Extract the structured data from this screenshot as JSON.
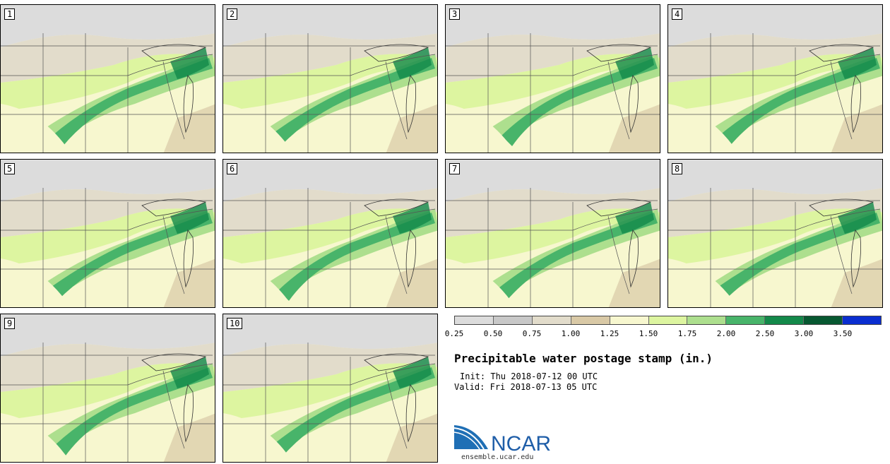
{
  "panels": [
    "1",
    "2",
    "3",
    "4",
    "5",
    "6",
    "7",
    "8",
    "9",
    "10"
  ],
  "colorbar": {
    "ticks": [
      "0.25",
      "0.50",
      "0.75",
      "1.00",
      "1.25",
      "1.50",
      "1.75",
      "2.00",
      "2.50",
      "3.00",
      "3.50"
    ],
    "colors": [
      "#dcdcdc",
      "#c8c8c8",
      "#e2dccb",
      "#d9c9a6",
      "#f7f7cf",
      "#ddf5a0",
      "#addf8e",
      "#48b46a",
      "#13894a",
      "#075831",
      "#0a2ed0"
    ]
  },
  "title": "Precipitable water postage stamp (in.)",
  "init_label": "Init:",
  "init_value": "Thu 2018-07-12 00 UTC",
  "valid_label": "Valid:",
  "valid_value": "Fri 2018-07-13 05 UTC",
  "logo_text": "NCAR",
  "logo_icon": "ncar-logo-icon",
  "url": "ensemble.ucar.edu"
}
